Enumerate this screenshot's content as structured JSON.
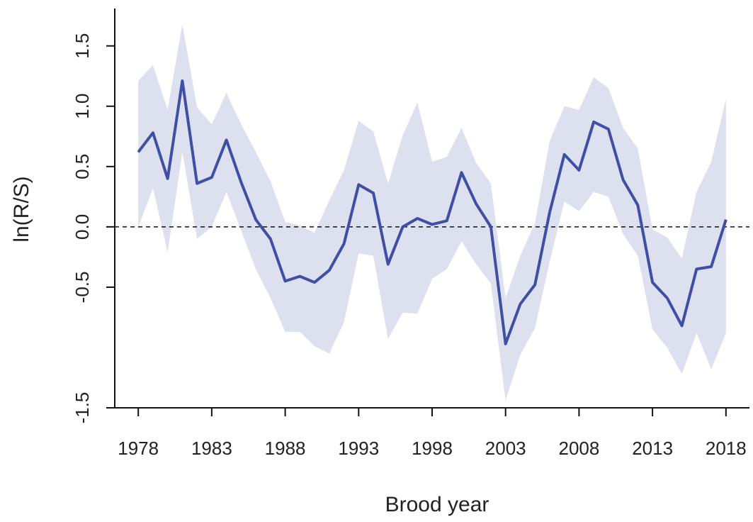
{
  "chart_data": {
    "type": "line",
    "x_label": "Brood year",
    "y_label": "ln(R/S)",
    "x": [
      1978,
      1979,
      1980,
      1981,
      1982,
      1983,
      1984,
      1985,
      1986,
      1987,
      1988,
      1989,
      1990,
      1991,
      1992,
      1993,
      1994,
      1995,
      1996,
      1997,
      1998,
      1999,
      2000,
      2001,
      2002,
      2003,
      2004,
      2005,
      2006,
      2007,
      2008,
      2009,
      2010,
      2011,
      2012,
      2013,
      2014,
      2015,
      2016,
      2017,
      2018
    ],
    "values": [
      0.62,
      0.78,
      0.4,
      1.21,
      0.36,
      0.41,
      0.72,
      0.37,
      0.06,
      -0.1,
      -0.45,
      -0.41,
      -0.46,
      -0.36,
      -0.14,
      0.35,
      0.28,
      -0.31,
      0.0,
      0.07,
      0.02,
      0.05,
      0.45,
      0.19,
      0.0,
      -0.97,
      -0.64,
      -0.48,
      0.12,
      0.6,
      0.47,
      0.87,
      0.81,
      0.39,
      0.18,
      -0.46,
      -0.59,
      -0.82,
      -0.35,
      -0.33,
      0.06
    ],
    "upper": [
      1.21,
      1.34,
      0.97,
      1.68,
      0.99,
      0.85,
      1.11,
      0.85,
      0.62,
      0.38,
      0.04,
      0.01,
      -0.05,
      0.22,
      0.47,
      0.88,
      0.79,
      0.36,
      0.76,
      1.03,
      0.54,
      0.58,
      0.82,
      0.53,
      0.36,
      -0.59,
      -0.24,
      0.03,
      0.71,
      1.0,
      0.97,
      1.24,
      1.15,
      0.82,
      0.65,
      -0.02,
      -0.09,
      -0.26,
      0.29,
      0.54,
      1.06
    ],
    "lower": [
      0.0,
      0.32,
      -0.21,
      0.62,
      -0.1,
      0.0,
      0.29,
      -0.03,
      -0.35,
      -0.59,
      -0.87,
      -0.87,
      -0.99,
      -1.05,
      -0.79,
      -0.22,
      -0.24,
      -0.93,
      -0.71,
      -0.72,
      -0.43,
      -0.35,
      -0.12,
      -0.31,
      -0.47,
      -1.44,
      -1.06,
      -0.84,
      -0.29,
      0.21,
      0.13,
      0.29,
      0.25,
      -0.06,
      -0.24,
      -0.85,
      -1.0,
      -1.22,
      -0.88,
      -1.18,
      -0.88
    ],
    "color": "#3f4fa3",
    "band_color": "#dde0ef",
    "reference_line": 0,
    "xlim": [
      1976.4,
      2019.6
    ],
    "ylim": [
      -1.5,
      1.81
    ],
    "xticks": [
      1978,
      1983,
      1988,
      1993,
      1998,
      2003,
      2008,
      2013,
      2018
    ],
    "yticks": [
      -1.5,
      -0.5,
      {
        "value": 0,
        "label": "0.0"
      },
      0.5,
      {
        "value": 1,
        "label": "1.0"
      },
      1.5
    ]
  }
}
